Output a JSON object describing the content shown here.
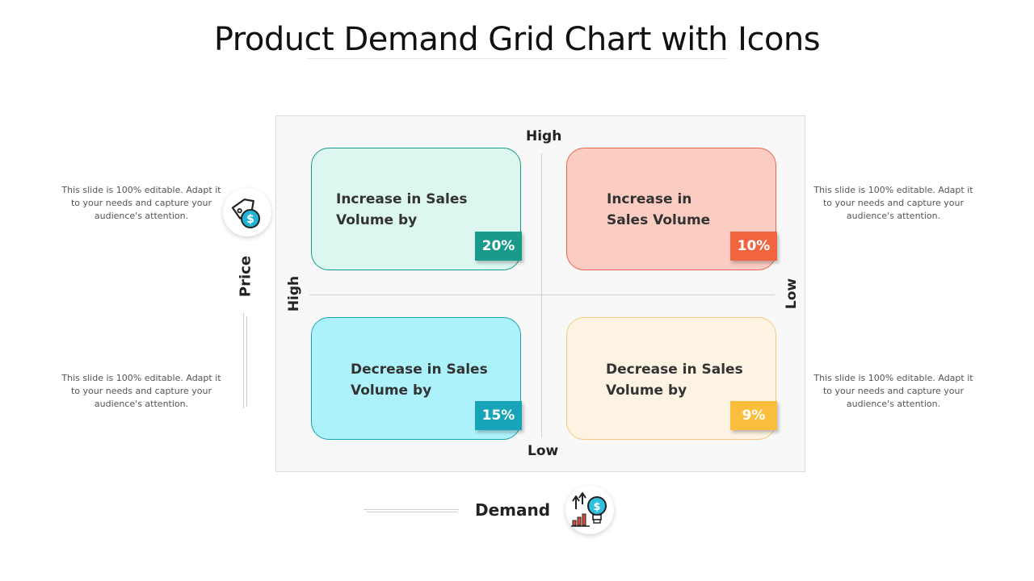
{
  "title": "Product Demand Grid Chart with Icons",
  "side_texts": {
    "top_left": "This slide is 100% editable. Adapt it to your needs and capture your audience's attention.",
    "bottom_left": "This slide is 100% editable. Adapt it to your needs and capture your audience's attention.",
    "top_right": "This slide is 100% editable. Adapt it to your needs and capture your audience's attention.",
    "bottom_right": "This slide is 100% editable. Adapt it to your needs and capture your audience's attention."
  },
  "axes": {
    "y_label": "Price",
    "x_label": "Demand",
    "top": "High",
    "bottom": "Low",
    "left": "High",
    "right": "Low"
  },
  "quadrants": [
    {
      "line1": "Increase in Sales",
      "line2": "Volume by",
      "value": "20%",
      "bg": "#dcf6f0",
      "border": "#1a9a8a",
      "badge": "#1a9a8a"
    },
    {
      "line1": "Increase in",
      "line2": "Sales Volume",
      "value": "10%",
      "bg": "#fbccc2",
      "border": "#e7644a",
      "badge": "#f06440"
    },
    {
      "line1": "Decrease in Sales",
      "line2": "Volume by",
      "value": "15%",
      "bg": "#adf2fb",
      "border": "#1aa3b3",
      "badge": "#17a4b8"
    },
    {
      "line1": "Decrease in Sales",
      "line2": "Volume by",
      "value": "9%",
      "bg": "#fdf3e3",
      "border": "#f5c97a",
      "badge": "#fbbd3c"
    }
  ],
  "icons": {
    "price": "price-tag-dollar-icon",
    "demand": "demand-bulb-growth-icon"
  }
}
